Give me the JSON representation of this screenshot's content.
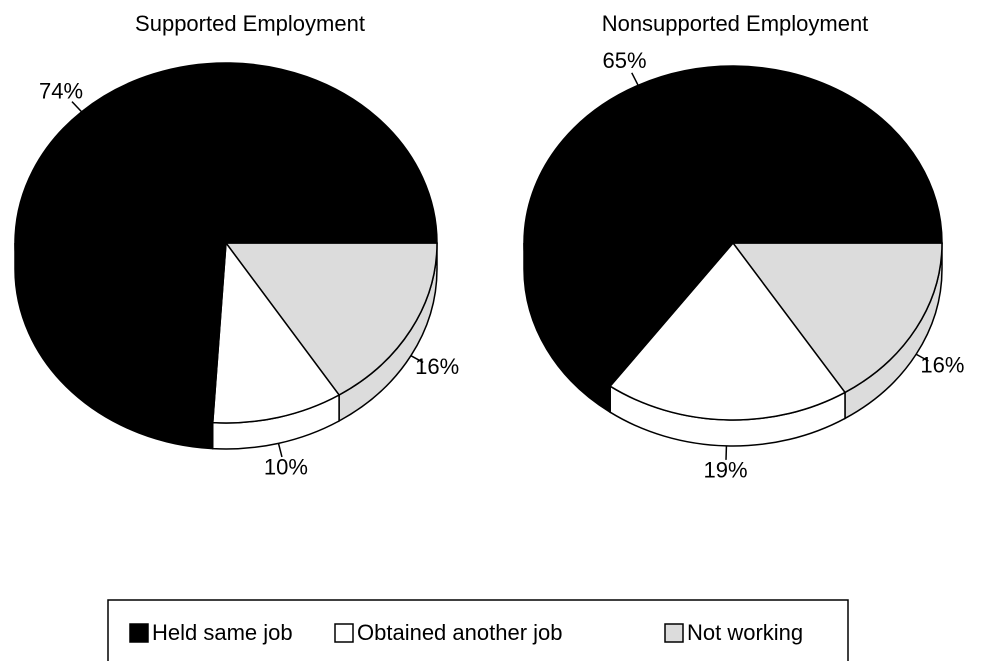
{
  "chart_data": [
    {
      "type": "pie",
      "title": "Supported Employment",
      "values": [
        74,
        10,
        16
      ],
      "value_labels": [
        "74%",
        "10%",
        "16%"
      ]
    },
    {
      "type": "pie",
      "title": "Nonsupported Employment",
      "values": [
        65,
        19,
        16
      ],
      "value_labels": [
        "65%",
        "19%",
        "16%"
      ]
    }
  ],
  "legend": {
    "labels": [
      "Held same job",
      "Obtained another job",
      "Not working"
    ],
    "colors": [
      "#000000",
      "#ffffff",
      "#dcdcdc"
    ]
  }
}
